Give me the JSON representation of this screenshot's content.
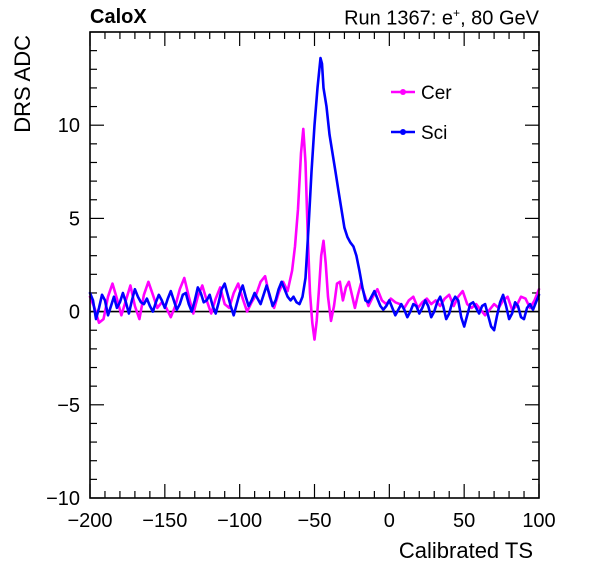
{
  "header": {
    "left": "CaloX",
    "right_prefix": "Run 1367: e",
    "right_sup": "+",
    "right_suffix": ", 80 GeV"
  },
  "chart_data": {
    "type": "line",
    "xlabel": "Calibrated TS",
    "ylabel": "DRS ADC",
    "xlim": [
      -200,
      100
    ],
    "ylim": [
      -10,
      15
    ],
    "xticks": [
      -200,
      -150,
      -100,
      -50,
      0,
      50,
      100
    ],
    "xtick_labels": [
      "−200",
      "−150",
      "−100",
      "−50",
      "0",
      "50",
      "100"
    ],
    "yticks": [
      -10,
      -5,
      0,
      5,
      10
    ],
    "ytick_labels": [
      "−10",
      "−5",
      "0",
      "5",
      "10"
    ],
    "reference_line_y": 0,
    "legend_position": "top-right",
    "grid": false,
    "series": [
      {
        "name": "Cer",
        "color": "#ff00ff",
        "points": [
          [
            -200,
            0.8
          ],
          [
            -197,
            0.2
          ],
          [
            -194,
            -0.6
          ],
          [
            -191,
            -0.4
          ],
          [
            -188,
            0.8
          ],
          [
            -185,
            1.5
          ],
          [
            -182,
            0.7
          ],
          [
            -179,
            -0.2
          ],
          [
            -176,
            0.6
          ],
          [
            -173,
            1.4
          ],
          [
            -170,
            0.3
          ],
          [
            -167,
            -0.4
          ],
          [
            -164,
            0.9
          ],
          [
            -161,
            1.6
          ],
          [
            -158,
            0.9
          ],
          [
            -155,
            0.2
          ],
          [
            -152,
            0.5
          ],
          [
            -149,
            0.2
          ],
          [
            -146,
            -0.3
          ],
          [
            -143,
            0.3
          ],
          [
            -140,
            1.2
          ],
          [
            -137,
            1.8
          ],
          [
            -134,
            0.8
          ],
          [
            -131,
            -0.1
          ],
          [
            -128,
            0.8
          ],
          [
            -125,
            1.4
          ],
          [
            -122,
            0.6
          ],
          [
            -119,
            -0.1
          ],
          [
            -116,
            0.7
          ],
          [
            -113,
            1.3
          ],
          [
            -110,
            0.4
          ],
          [
            -107,
            0.2
          ],
          [
            -104,
            1.0
          ],
          [
            -101,
            1.5
          ],
          [
            -98,
            0.7
          ],
          [
            -95,
            0.0
          ],
          [
            -92,
            0.5
          ],
          [
            -89,
            0.9
          ],
          [
            -86,
            1.6
          ],
          [
            -83,
            1.9
          ],
          [
            -80,
            0.8
          ],
          [
            -77,
            0.2
          ],
          [
            -74,
            1.0
          ],
          [
            -71,
            1.6
          ],
          [
            -68,
            1.1
          ],
          [
            -65,
            2.2
          ],
          [
            -63,
            3.5
          ],
          [
            -61,
            5.5
          ],
          [
            -59,
            8.5
          ],
          [
            -57.5,
            9.8
          ],
          [
            -56,
            8.0
          ],
          [
            -54.5,
            4.0
          ],
          [
            -53,
            1.0
          ],
          [
            -51.5,
            -0.6
          ],
          [
            -50,
            -1.5
          ],
          [
            -48.5,
            -0.5
          ],
          [
            -47,
            1.2
          ],
          [
            -45.5,
            3.0
          ],
          [
            -44,
            3.8
          ],
          [
            -42.5,
            2.6
          ],
          [
            -41,
            0.8
          ],
          [
            -39,
            -0.5
          ],
          [
            -37,
            0.3
          ],
          [
            -35,
            1.5
          ],
          [
            -33,
            1.6
          ],
          [
            -31,
            0.6
          ],
          [
            -29,
            1.3
          ],
          [
            -27,
            1.6
          ],
          [
            -25,
            0.9
          ],
          [
            -23,
            0.2
          ],
          [
            -21,
            0.9
          ],
          [
            -19,
            1.5
          ],
          [
            -17,
            1.0
          ],
          [
            -14,
            0.3
          ],
          [
            -11,
            0.8
          ],
          [
            -8,
            1.2
          ],
          [
            -5,
            0.6
          ],
          [
            -2,
            0.4
          ],
          [
            1,
            0.7
          ],
          [
            4,
            0.5
          ],
          [
            7,
            0.4
          ],
          [
            10,
            0.2
          ],
          [
            13,
            0.6
          ],
          [
            16,
            0.8
          ],
          [
            19,
            0.2
          ],
          [
            22,
            0.5
          ],
          [
            25,
            0.7
          ],
          [
            28,
            0.4
          ],
          [
            31,
            0.6
          ],
          [
            34,
            0.3
          ],
          [
            37,
            0.7
          ],
          [
            40,
            0.9
          ],
          [
            43,
            0.3
          ],
          [
            46,
            0.8
          ],
          [
            49,
            1.1
          ],
          [
            52,
            0.4
          ],
          [
            55,
            0.2
          ],
          [
            58,
            0.4
          ],
          [
            61,
            0.1
          ],
          [
            64,
            -0.2
          ],
          [
            67,
            0.1
          ],
          [
            70,
            0.4
          ],
          [
            73,
            0.2
          ],
          [
            76,
            0.6
          ],
          [
            79,
            0.8
          ],
          [
            82,
            0.1
          ],
          [
            85,
            0.3
          ],
          [
            88,
            0.8
          ],
          [
            91,
            0.7
          ],
          [
            94,
            0.2
          ],
          [
            97,
            0.6
          ],
          [
            100,
            1.2
          ]
        ]
      },
      {
        "name": "Sci",
        "color": "#0000ff",
        "points": [
          [
            -200,
            1.0
          ],
          [
            -198,
            0.6
          ],
          [
            -196,
            -0.4
          ],
          [
            -194,
            0.2
          ],
          [
            -192,
            0.9
          ],
          [
            -190,
            0.6
          ],
          [
            -188,
            -0.2
          ],
          [
            -186,
            0.3
          ],
          [
            -184,
            0.8
          ],
          [
            -182,
            0.2
          ],
          [
            -180,
            0.5
          ],
          [
            -178,
            1.0
          ],
          [
            -176,
            0.5
          ],
          [
            -174,
            -0.1
          ],
          [
            -172,
            0.6
          ],
          [
            -170,
            1.2
          ],
          [
            -168,
            0.8
          ],
          [
            -166,
            0.5
          ],
          [
            -164,
            0.4
          ],
          [
            -162,
            0.7
          ],
          [
            -160,
            0.3
          ],
          [
            -158,
            0.0
          ],
          [
            -156,
            0.5
          ],
          [
            -154,
            0.9
          ],
          [
            -152,
            0.6
          ],
          [
            -150,
            0.2
          ],
          [
            -148,
            0.7
          ],
          [
            -146,
            1.1
          ],
          [
            -144,
            0.6
          ],
          [
            -142,
            0.1
          ],
          [
            -140,
            0.4
          ],
          [
            -138,
            0.9
          ],
          [
            -136,
            1.0
          ],
          [
            -134,
            0.4
          ],
          [
            -132,
            0.0
          ],
          [
            -130,
            0.6
          ],
          [
            -128,
            1.3
          ],
          [
            -126,
            1.0
          ],
          [
            -124,
            0.5
          ],
          [
            -122,
            0.6
          ],
          [
            -120,
            0.9
          ],
          [
            -118,
            0.3
          ],
          [
            -116,
            -0.1
          ],
          [
            -114,
            0.5
          ],
          [
            -112,
            1.2
          ],
          [
            -110,
            1.5
          ],
          [
            -108,
            0.9
          ],
          [
            -106,
            0.3
          ],
          [
            -104,
            -0.2
          ],
          [
            -102,
            0.4
          ],
          [
            -100,
            1.0
          ],
          [
            -98,
            1.4
          ],
          [
            -96,
            0.8
          ],
          [
            -94,
            0.3
          ],
          [
            -92,
            0.6
          ],
          [
            -90,
            1.0
          ],
          [
            -88,
            0.7
          ],
          [
            -86,
            0.4
          ],
          [
            -84,
            0.9
          ],
          [
            -82,
            1.4
          ],
          [
            -80,
            0.9
          ],
          [
            -78,
            0.3
          ],
          [
            -76,
            0.6
          ],
          [
            -74,
            1.2
          ],
          [
            -72,
            1.6
          ],
          [
            -70,
            1.2
          ],
          [
            -68,
            0.8
          ],
          [
            -66,
            0.6
          ],
          [
            -64,
            0.8
          ],
          [
            -62,
            0.5
          ],
          [
            -60,
            0.4
          ],
          [
            -58,
            0.8
          ],
          [
            -56,
            1.8
          ],
          [
            -54,
            4.5
          ],
          [
            -52,
            7.5
          ],
          [
            -50,
            10.0
          ],
          [
            -48,
            12.0
          ],
          [
            -46,
            13.6
          ],
          [
            -45,
            13.3
          ],
          [
            -44,
            12.0
          ],
          [
            -42,
            11.0
          ],
          [
            -40,
            9.5
          ],
          [
            -38,
            8.5
          ],
          [
            -36,
            7.5
          ],
          [
            -34,
            6.5
          ],
          [
            -32,
            5.5
          ],
          [
            -30,
            4.5
          ],
          [
            -28,
            4.0
          ],
          [
            -26,
            3.7
          ],
          [
            -24,
            3.5
          ],
          [
            -22,
            3.0
          ],
          [
            -20,
            2.2
          ],
          [
            -18,
            1.3
          ],
          [
            -16,
            0.6
          ],
          [
            -14,
            0.5
          ],
          [
            -12,
            0.8
          ],
          [
            -10,
            1.1
          ],
          [
            -8,
            0.7
          ],
          [
            -6,
            0.3
          ],
          [
            -4,
            0.1
          ],
          [
            -2,
            0.3
          ],
          [
            0,
            0.6
          ],
          [
            2,
            0.2
          ],
          [
            4,
            -0.2
          ],
          [
            6,
            0.1
          ],
          [
            8,
            0.4
          ],
          [
            10,
            0.1
          ],
          [
            12,
            -0.3
          ],
          [
            14,
            0.0
          ],
          [
            16,
            0.4
          ],
          [
            18,
            0.3
          ],
          [
            20,
            -0.1
          ],
          [
            22,
            0.2
          ],
          [
            24,
            0.6
          ],
          [
            26,
            0.3
          ],
          [
            28,
            -0.3
          ],
          [
            30,
            0.0
          ],
          [
            32,
            0.5
          ],
          [
            34,
            0.8
          ],
          [
            36,
            0.3
          ],
          [
            38,
            -0.4
          ],
          [
            40,
            -0.1
          ],
          [
            42,
            0.5
          ],
          [
            44,
            0.8
          ],
          [
            46,
            0.6
          ],
          [
            48,
            -0.3
          ],
          [
            50,
            -0.8
          ],
          [
            52,
            -0.2
          ],
          [
            54,
            0.4
          ],
          [
            56,
            0.5
          ],
          [
            58,
            0.2
          ],
          [
            60,
            -0.1
          ],
          [
            62,
            0.3
          ],
          [
            64,
            0.4
          ],
          [
            66,
            -0.2
          ],
          [
            68,
            -0.8
          ],
          [
            70,
            -1.0
          ],
          [
            72,
            -0.2
          ],
          [
            74,
            0.5
          ],
          [
            76,
            0.9
          ],
          [
            78,
            0.3
          ],
          [
            80,
            -0.4
          ],
          [
            82,
            -0.1
          ],
          [
            84,
            0.5
          ],
          [
            86,
            0.3
          ],
          [
            88,
            -0.3
          ],
          [
            90,
            -0.4
          ],
          [
            92,
            0.2
          ],
          [
            94,
            0.4
          ],
          [
            96,
            0.1
          ],
          [
            98,
            0.5
          ],
          [
            100,
            0.9
          ]
        ]
      }
    ]
  }
}
